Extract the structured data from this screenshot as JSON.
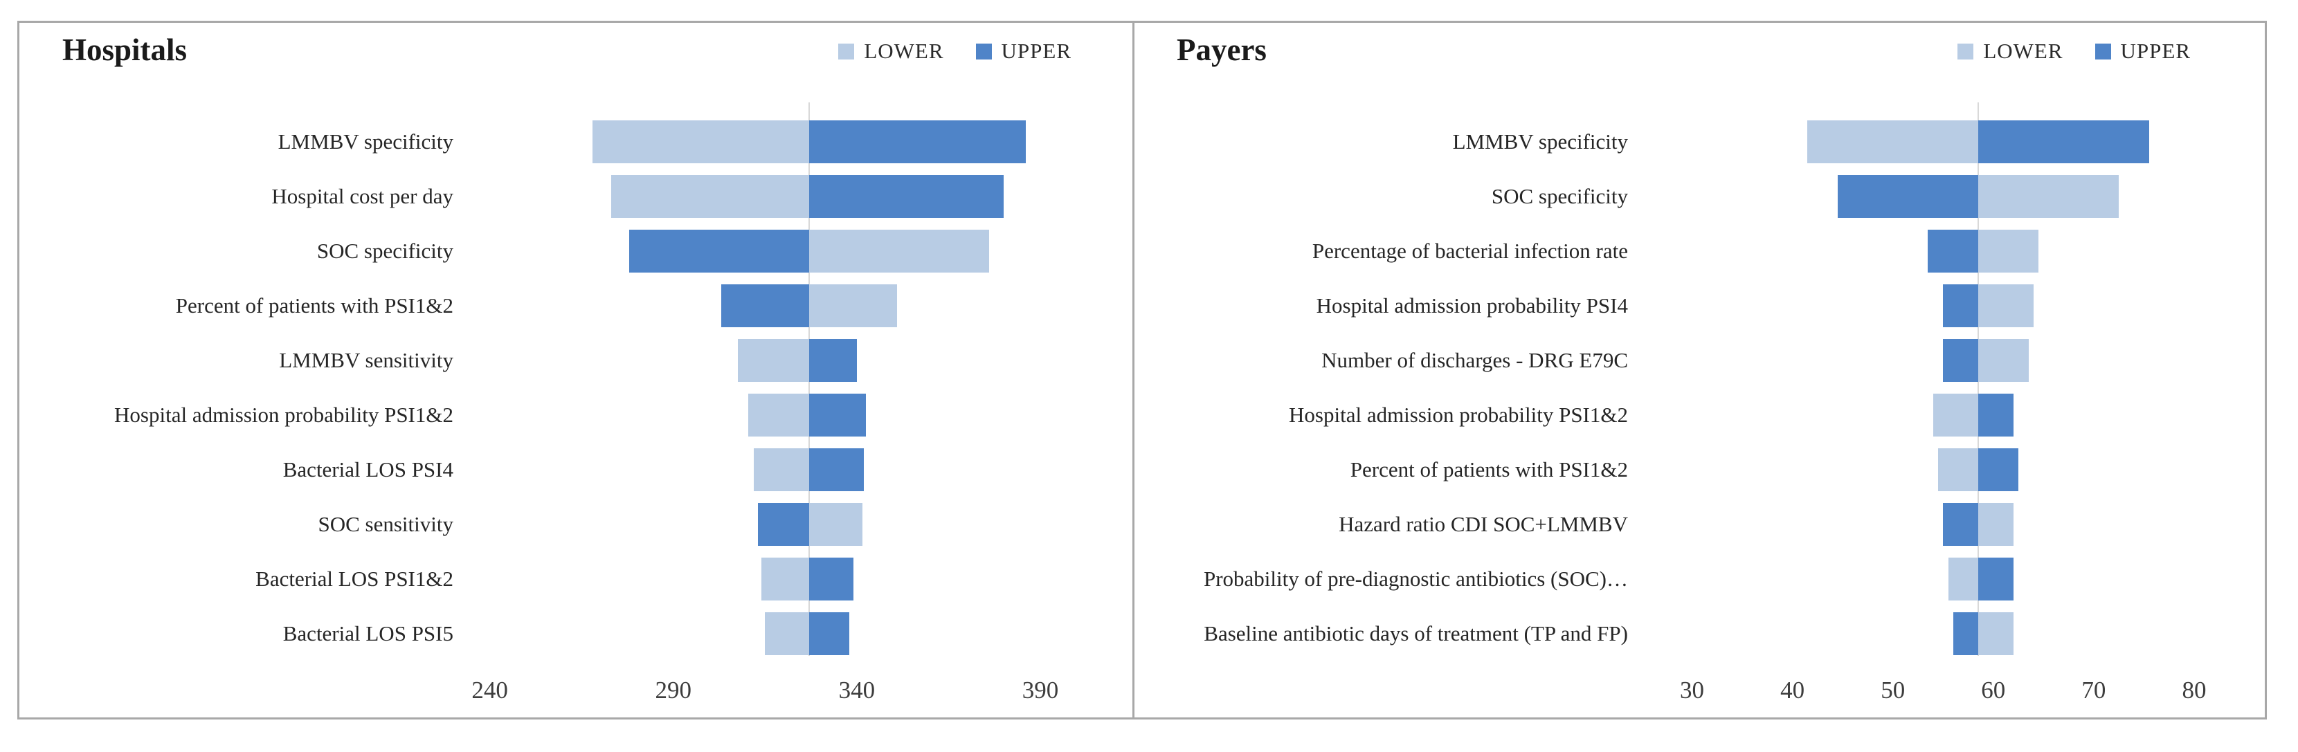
{
  "figure": {
    "border_color": "#a8a8a8",
    "background_color": "#ffffff",
    "gridline_color": "#d9d9d9"
  },
  "colors": {
    "lower_series": "#b8cce4",
    "upper_series": "#4f84c8"
  },
  "legend": {
    "lower_label": "LOWER",
    "upper_label": "UPPER"
  },
  "chart_data": [
    {
      "type": "bar",
      "subtype": "tornado",
      "title": "Hospitals",
      "legend_entries": [
        "LOWER",
        "UPPER"
      ],
      "base_value": 327,
      "axis": {
        "min": 215,
        "max": 400,
        "ticks": [
          240,
          290,
          340,
          390
        ]
      },
      "rows": [
        {
          "label": "LMMBV specificity",
          "lower": 268,
          "upper": 386
        },
        {
          "label": "Hospital cost per day",
          "lower": 273,
          "upper": 380
        },
        {
          "label": "SOC specificity",
          "lower": 376,
          "upper": 278
        },
        {
          "label": "Percent of patients with PSI1&2",
          "lower": 351,
          "upper": 303
        },
        {
          "label": "LMMBV sensitivity",
          "lower": 307.5,
          "upper": 340
        },
        {
          "label": "Hospital admission probability PSI1&2",
          "lower": 310.5,
          "upper": 342.5
        },
        {
          "label": "Bacterial LOS PSI4",
          "lower": 312,
          "upper": 342
        },
        {
          "label": "SOC sensitivity",
          "lower": 341.5,
          "upper": 313
        },
        {
          "label": "Bacterial LOS PSI1&2",
          "lower": 314,
          "upper": 339
        },
        {
          "label": "Bacterial LOS PSI5",
          "lower": 315,
          "upper": 338
        }
      ]
    },
    {
      "type": "bar",
      "subtype": "tornado",
      "title": "Payers",
      "legend_entries": [
        "LOWER",
        "UPPER"
      ],
      "base_value": 58.5,
      "axis": {
        "min": 25,
        "max": 84,
        "ticks": [
          30,
          40,
          50,
          60,
          70,
          80
        ]
      },
      "rows": [
        {
          "label": "LMMBV specificity",
          "lower": 41.5,
          "upper": 75.5
        },
        {
          "label": "SOC specificity",
          "lower": 72.5,
          "upper": 44.5
        },
        {
          "label": "Percentage of bacterial infection rate",
          "lower": 64.5,
          "upper": 53.5
        },
        {
          "label": "Hospital admission probability PSI4",
          "lower": 64,
          "upper": 55
        },
        {
          "label": "Number of discharges - DRG E79C",
          "lower": 63.5,
          "upper": 55
        },
        {
          "label": "Hospital admission probability PSI1&2",
          "lower": 54,
          "upper": 62
        },
        {
          "label": "Percent of patients with PSI1&2",
          "lower": 54.5,
          "upper": 62.5
        },
        {
          "label": "Hazard ratio CDI SOC+LMMBV",
          "lower": 62,
          "upper": 55
        },
        {
          "label": "Probability of pre-diagnostic antibiotics (SOC)…",
          "lower": 55.5,
          "upper": 62
        },
        {
          "label": "Baseline antibiotic days of treatment (TP and FP)",
          "lower": 62,
          "upper": 56
        }
      ]
    }
  ]
}
